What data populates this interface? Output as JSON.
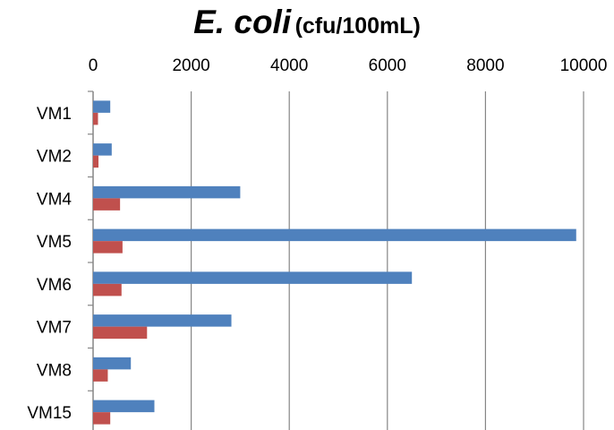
{
  "chart_data": {
    "type": "bar",
    "orientation": "horizontal",
    "title": "E. coli",
    "subtitle": "(cfu/100mL)",
    "xlabel": "",
    "ylabel": "",
    "categories": [
      "VM1",
      "VM2",
      "VM4",
      "VM5",
      "VM6",
      "VM7",
      "VM8",
      "VM15"
    ],
    "series": [
      {
        "color": "#4F81BD",
        "values": [
          350,
          380,
          3000,
          9850,
          6500,
          2820,
          770,
          1250
        ]
      },
      {
        "color": "#C0504D",
        "values": [
          100,
          110,
          550,
          600,
          580,
          1100,
          300,
          350
        ]
      }
    ],
    "xlim": [
      0,
      10000
    ],
    "xticks": [
      "0",
      "2000",
      "4000",
      "6000",
      "8000",
      "10000"
    ],
    "x_axis_position": "top",
    "grid": true,
    "legend": "none"
  }
}
